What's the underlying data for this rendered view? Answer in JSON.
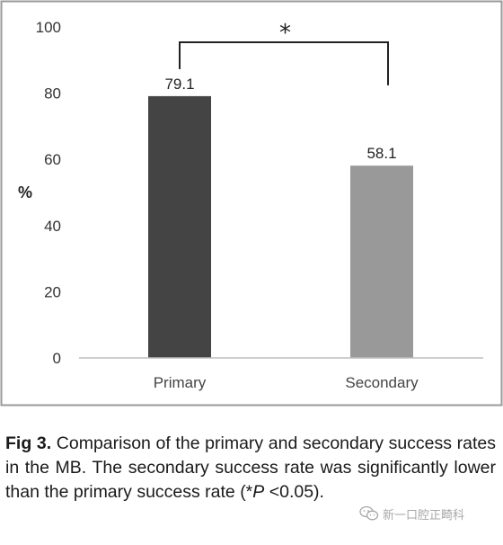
{
  "chart_data": {
    "type": "bar",
    "categories": [
      "Primary",
      "Secondary"
    ],
    "values": [
      79.1,
      58.1
    ],
    "data_labels": [
      "79.1",
      "58.1"
    ],
    "title": "",
    "xlabel": "",
    "ylabel": "%",
    "ylim": [
      0,
      100
    ],
    "yticks": [
      0,
      20,
      40,
      60,
      80,
      100
    ],
    "grid": false,
    "legend": "none",
    "bar_colors": [
      "#444444",
      "#999999"
    ],
    "annotations": [
      {
        "type": "significance-bracket",
        "between": [
          "Primary",
          "Secondary"
        ],
        "label": "*"
      }
    ]
  },
  "caption": {
    "label": "Fig 3.",
    "text_before_p": " Comparison of the primary and secondary success rates in the MB. The secondary success rate was significantly lower than the primary success rate (*",
    "p_symbol": "P",
    "text_after_p": " <0.05)."
  },
  "watermark": {
    "text": "新一口腔正畸科",
    "icon": "wechat-icon"
  }
}
